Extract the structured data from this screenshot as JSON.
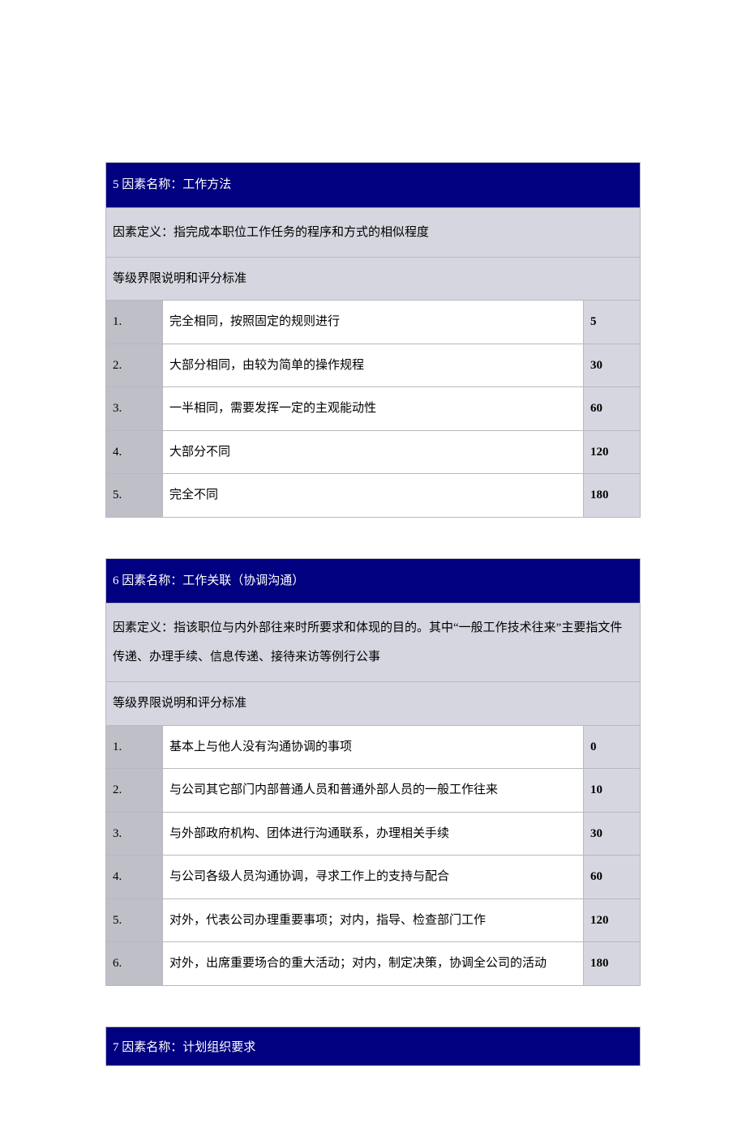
{
  "colors": {
    "header_bg": "#000080",
    "header_text": "#ffffff",
    "def_bg": "#d6d6e0",
    "num_bg": "#bfbfc8",
    "desc_bg": "#ffffff",
    "score_bg": "#d6d6e0",
    "border": "#b8b8c0",
    "text": "#000000"
  },
  "typography": {
    "font_family": "SimSun",
    "base_fontsize": 15,
    "line_height": 1.9
  },
  "layout": {
    "col_num_width": 70,
    "col_score_width": 70,
    "table_gap": 50
  },
  "factor5": {
    "header": "5 因素名称：工作方法",
    "definition": "因素定义：指完成本职位工作任务的程序和方式的相似程度",
    "criteria_label": "等级界限说明和评分标准",
    "rows": [
      {
        "num": "1.",
        "desc": "完全相同，按照固定的规则进行",
        "score": "5"
      },
      {
        "num": "2.",
        "desc": "大部分相同，由较为简单的操作规程",
        "score": "30"
      },
      {
        "num": "3.",
        "desc": "一半相同，需要发挥一定的主观能动性",
        "score": "60"
      },
      {
        "num": "4.",
        "desc": "大部分不同",
        "score": "120"
      },
      {
        "num": "5.",
        "desc": "完全不同",
        "score": "180"
      }
    ]
  },
  "factor6": {
    "header": "6 因素名称：工作关联（协调沟通）",
    "definition": "因素定义：指该职位与内外部往来时所要求和体现的目的。其中“一般工作技术往来”主要指文件传递、办理手续、信息传递、接待来访等例行公事",
    "criteria_label": "等级界限说明和评分标准",
    "rows": [
      {
        "num": "1.",
        "desc": "基本上与他人没有沟通协调的事项",
        "score": "0"
      },
      {
        "num": "2.",
        "desc": "与公司其它部门内部普通人员和普通外部人员的一般工作往来",
        "score": "10"
      },
      {
        "num": "3.",
        "desc": "与外部政府机构、团体进行沟通联系，办理相关手续",
        "score": "30"
      },
      {
        "num": "4.",
        "desc": "与公司各级人员沟通协调，寻求工作上的支持与配合",
        "score": "60"
      },
      {
        "num": "5.",
        "desc": "对外，代表公司办理重要事项；对内，指导、检查部门工作",
        "score": "120"
      },
      {
        "num": "6.",
        "desc": "对外，出席重要场合的重大活动；对内，制定决策，协调全公司的活动",
        "score": "180"
      }
    ]
  },
  "factor7": {
    "header": "7 因素名称：计划组织要求"
  }
}
